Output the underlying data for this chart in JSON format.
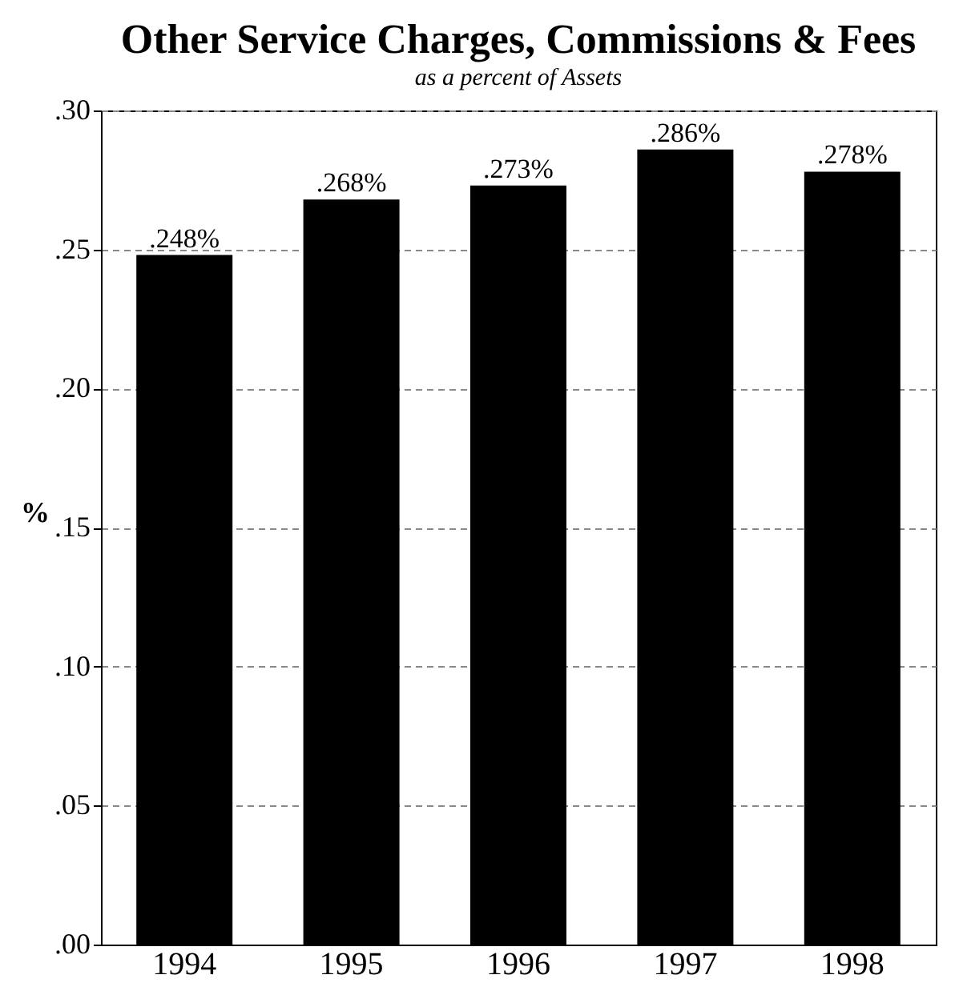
{
  "chart_data": {
    "type": "bar",
    "title": "Other Service Charges, Commissions & Fees",
    "subtitle": "as a percent of Assets",
    "ylabel": "%",
    "categories": [
      "1994",
      "1995",
      "1996",
      "1997",
      "1998"
    ],
    "values": [
      0.248,
      0.268,
      0.273,
      0.286,
      0.278
    ],
    "value_labels": [
      ".248%",
      ".268%",
      ".273%",
      ".286%",
      ".278%"
    ],
    "color": "#000000",
    "ylim": [
      0,
      0.3
    ],
    "yticks": [
      {
        "value": 0,
        "label": ".00"
      },
      {
        "value": 0.05,
        "label": ".05"
      },
      {
        "value": 0.1,
        "label": ".10"
      },
      {
        "value": 0.15,
        "label": ".15"
      },
      {
        "value": 0.2,
        "label": ".20"
      },
      {
        "value": 0.25,
        "label": ".25"
      },
      {
        "value": 0.3,
        "label": ".30"
      }
    ],
    "grid": "y"
  }
}
